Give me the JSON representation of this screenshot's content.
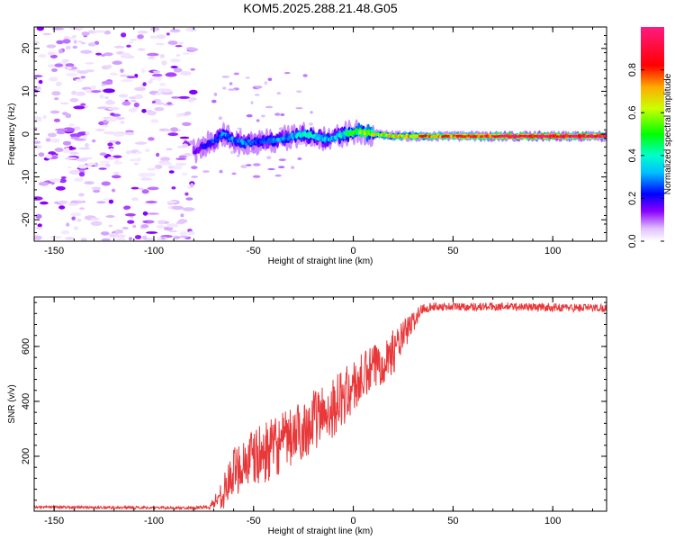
{
  "figure_title": "KOM5.2025.288.21.48.G05",
  "chart_data": [
    {
      "type": "heatmap",
      "title": "KOM5.2025.288.21.48.G05",
      "xlabel": "Height of straight line (km)",
      "ylabel": "Frequency (Hz)",
      "xlim": [
        -160,
        127
      ],
      "ylim": [
        -25,
        25
      ],
      "xticks": [
        -150,
        -100,
        -50,
        0,
        50,
        100
      ],
      "xtick_labels": [
        "-150",
        "-100",
        "-50",
        "0",
        "50",
        "100"
      ],
      "yticks": [
        -20,
        -10,
        0,
        10,
        20
      ],
      "ytick_labels": [
        "-20",
        "-10",
        "0",
        "10",
        "20"
      ],
      "colorbar": {
        "label": "Normalized spectral amplitude",
        "range": [
          0,
          1
        ],
        "ticks": [
          0,
          0.2,
          0.4,
          0.6,
          0.8
        ],
        "tick_labels": [
          "0.0",
          "0.2",
          "0.4",
          "0.6",
          "0.8"
        ],
        "colormap": "rainbow (white-violet-blue-cyan-green-yellow-red-magenta)"
      },
      "ridge": {
        "description": "Main spectral ridge: frequency vs height, amplitude along ridge",
        "points": [
          {
            "x": -80,
            "y": -4.0,
            "amp": 0.15
          },
          {
            "x": -75,
            "y": -3.0,
            "amp": 0.2
          },
          {
            "x": -70,
            "y": -1.5,
            "amp": 0.25
          },
          {
            "x": -65,
            "y": 0.0,
            "amp": 0.3
          },
          {
            "x": -60,
            "y": -1.5,
            "amp": 0.3
          },
          {
            "x": -55,
            "y": -2.0,
            "amp": 0.3
          },
          {
            "x": -50,
            "y": -2.0,
            "amp": 0.25
          },
          {
            "x": -45,
            "y": -1.5,
            "amp": 0.25
          },
          {
            "x": -40,
            "y": -1.5,
            "amp": 0.3
          },
          {
            "x": -35,
            "y": -1.0,
            "amp": 0.3
          },
          {
            "x": -30,
            "y": -0.5,
            "amp": 0.35
          },
          {
            "x": -25,
            "y": 0.0,
            "amp": 0.4
          },
          {
            "x": -20,
            "y": -0.5,
            "amp": 0.4
          },
          {
            "x": -15,
            "y": -1.0,
            "amp": 0.35
          },
          {
            "x": -10,
            "y": -1.0,
            "amp": 0.35
          },
          {
            "x": -5,
            "y": 0.0,
            "amp": 0.4
          },
          {
            "x": 0,
            "y": 0.5,
            "amp": 0.5
          },
          {
            "x": 5,
            "y": 0.5,
            "amp": 0.6
          },
          {
            "x": 10,
            "y": 0.0,
            "amp": 0.65
          },
          {
            "x": 20,
            "y": -0.5,
            "amp": 0.7
          },
          {
            "x": 30,
            "y": -0.5,
            "amp": 0.75
          },
          {
            "x": 40,
            "y": -0.5,
            "amp": 0.8
          },
          {
            "x": 50,
            "y": -0.5,
            "amp": 0.85
          },
          {
            "x": 60,
            "y": -0.5,
            "amp": 0.9
          },
          {
            "x": 70,
            "y": -0.5,
            "amp": 0.95
          },
          {
            "x": 80,
            "y": -0.5,
            "amp": 1.0
          },
          {
            "x": 90,
            "y": -0.5,
            "amp": 1.0
          },
          {
            "x": 100,
            "y": -0.5,
            "amp": 1.0
          },
          {
            "x": 110,
            "y": -0.5,
            "amp": 1.0
          },
          {
            "x": 127,
            "y": -0.5,
            "amp": 1.0
          }
        ]
      },
      "noise_region": {
        "description": "Scattered low-amplitude noise blobs",
        "x_range": [
          -160,
          -80
        ],
        "y_range": [
          -25,
          25
        ],
        "amp_range": [
          0.02,
          0.15
        ]
      }
    },
    {
      "type": "line",
      "xlabel": "Height of straight line (km)",
      "ylabel": "SNR (v/v)",
      "xlim": [
        -160,
        127
      ],
      "ylim": [
        0,
        780
      ],
      "xticks": [
        -150,
        -100,
        -50,
        0,
        50,
        100
      ],
      "xtick_labels": [
        "-150",
        "-100",
        "-50",
        "0",
        "50",
        "100"
      ],
      "yticks": [
        200,
        400,
        600
      ],
      "ytick_labels": [
        "200",
        "400",
        "600"
      ],
      "series": [
        {
          "name": "SNR",
          "color": "#e8383a",
          "envelope": {
            "description": "Noisy SNR trace: mean and noise amplitude at key heights",
            "x": [
              -160,
              -80,
              -72,
              -65,
              -60,
              -55,
              -50,
              -40,
              -30,
              -20,
              -10,
              0,
              10,
              20,
              30,
              35,
              40,
              60,
              80,
              100,
              127
            ],
            "mean": [
              15,
              12,
              15,
              70,
              140,
              180,
              190,
              230,
              270,
              330,
              380,
              450,
              520,
              580,
              690,
              740,
              745,
              745,
              745,
              742,
              740
            ],
            "noise": [
              5,
              5,
              10,
              60,
              90,
              100,
              110,
              110,
              110,
              110,
              110,
              100,
              90,
              80,
              40,
              20,
              15,
              15,
              15,
              15,
              15
            ]
          }
        }
      ]
    }
  ]
}
